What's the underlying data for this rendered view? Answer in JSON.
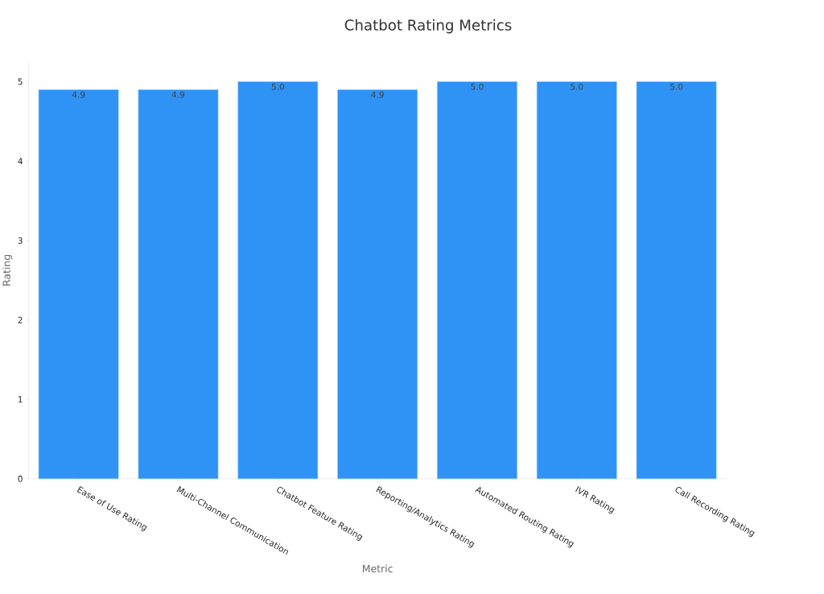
{
  "chart_data": {
    "type": "bar",
    "title": "Chatbot Rating Metrics",
    "xlabel": "Metric",
    "ylabel": "Rating",
    "categories": [
      "Ease of Use Rating",
      "Multi-Channel Communication",
      "Chatbot Feature Rating",
      "Reporting/Analytics Rating",
      "Automated Routing Rating",
      "IVR Rating",
      "Call Recording Rating"
    ],
    "values": [
      4.9,
      4.9,
      5.0,
      4.9,
      5.0,
      5.0,
      5.0
    ],
    "value_labels": [
      "4.9",
      "4.9",
      "5.0",
      "4.9",
      "5.0",
      "5.0",
      "5.0"
    ],
    "color": "#2e93f5",
    "ylim": [
      0,
      5.25
    ],
    "yticks": [
      0,
      1,
      2,
      3,
      4,
      5
    ]
  }
}
